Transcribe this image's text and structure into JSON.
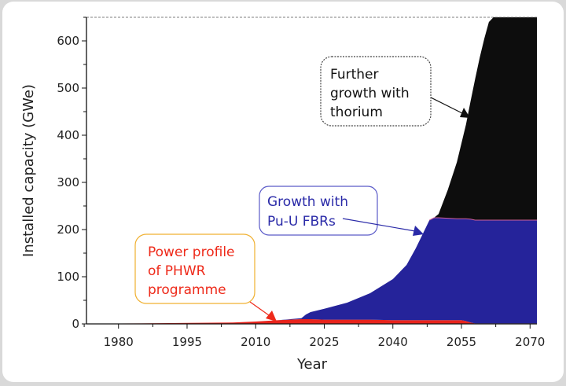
{
  "chart_data": {
    "type": "area",
    "stacked": true,
    "title": "",
    "xlabel": "Year",
    "ylabel": "Installed capacity (GWe)",
    "xlim": [
      1973,
      2071.5
    ],
    "ylim": [
      0,
      650
    ],
    "xticks": [
      1980,
      1995,
      2010,
      2025,
      2040,
      2055,
      2070
    ],
    "yticks": [
      0,
      100,
      200,
      300,
      400,
      500,
      600
    ],
    "grid": false,
    "x": [
      1973,
      1985,
      1995,
      2005,
      2010,
      2015,
      2020,
      2021,
      2022,
      2025,
      2030,
      2035,
      2040,
      2043,
      2045,
      2047,
      2048,
      2049,
      2050,
      2052,
      2054,
      2055,
      2056,
      2057,
      2058,
      2059,
      2060,
      2061,
      2062,
      2065,
      2071.5
    ],
    "series": [
      {
        "name": "PHWR",
        "color": "#e8231c",
        "values": [
          0.5,
          1,
          2,
          3,
          5,
          8,
          10,
          10,
          10,
          9,
          9,
          9,
          8,
          8,
          8,
          8,
          8,
          8,
          8,
          8,
          8,
          8,
          6,
          3,
          1,
          1,
          1,
          1,
          1,
          1,
          1
        ]
      },
      {
        "name": "Pu-U FBRs",
        "color": "#25239a",
        "values": [
          0,
          0,
          0,
          0,
          0,
          0,
          2,
          10,
          15,
          23,
          36,
          56,
          87,
          117,
          152,
          192,
          212,
          217,
          217,
          216,
          215,
          215,
          217,
          219,
          219,
          219,
          219,
          219,
          219,
          219,
          219
        ]
      },
      {
        "name": "Thorium",
        "color": "#0d0d0d",
        "values": [
          0,
          0,
          0,
          0,
          0,
          0,
          0,
          0,
          0,
          0,
          0,
          0,
          0,
          0,
          0,
          0,
          0,
          0,
          8,
          60,
          120,
          160,
          200,
          250,
          300,
          345,
          385,
          420,
          430,
          430,
          430
        ]
      }
    ],
    "annotations": [
      {
        "id": "thorium",
        "lines": [
          "Further",
          "growth with",
          "thorium"
        ],
        "color": "#111111",
        "border": "#444444"
      },
      {
        "id": "fbr",
        "lines": [
          "Growth with",
          "Pu-U FBRs"
        ],
        "color": "#2a2aa8",
        "border": "#5a5ac8"
      },
      {
        "id": "phwr",
        "lines": [
          "Power profile",
          "of PHWR",
          "programme"
        ],
        "color": "#ee2a1a",
        "border": "#f0b030"
      }
    ]
  }
}
